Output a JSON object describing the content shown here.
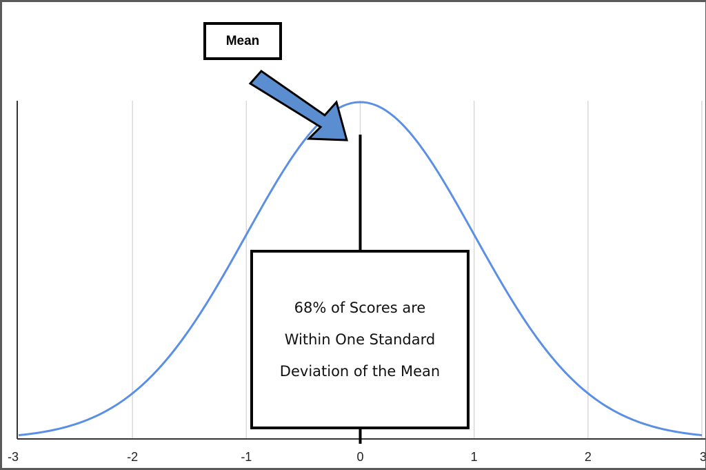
{
  "chart_data": {
    "type": "line",
    "title": "",
    "xlabel": "",
    "ylabel": "",
    "xlim": [
      -3,
      3
    ],
    "x_ticks": [
      "-3",
      "-2",
      "-1",
      "0",
      "1",
      "2",
      "3"
    ],
    "grid": true,
    "series": [
      {
        "distribution": "standard normal",
        "mean": 0,
        "sd": 1,
        "x": [
          -3,
          -2.5,
          -2,
          -1.5,
          -1,
          -0.5,
          0,
          0.5,
          1,
          1.5,
          2,
          2.5,
          3
        ],
        "y": [
          0.0044,
          0.0175,
          0.054,
          0.1295,
          0.242,
          0.3521,
          0.3989,
          0.3521,
          0.242,
          0.1295,
          0.054,
          0.0175,
          0.0044
        ],
        "color": "#5b8fe6"
      }
    ],
    "mean_marker_x": 0
  },
  "annotations": {
    "mean_label": "Mean",
    "note_lines": [
      "68% of Scores are",
      "Within One Standard",
      "Deviation of the Mean"
    ]
  },
  "colors": {
    "curve": "#5b8fe6",
    "arrow_fill": "#5b8ed1",
    "grid": "#d9d9d9",
    "axis": "#333333"
  }
}
